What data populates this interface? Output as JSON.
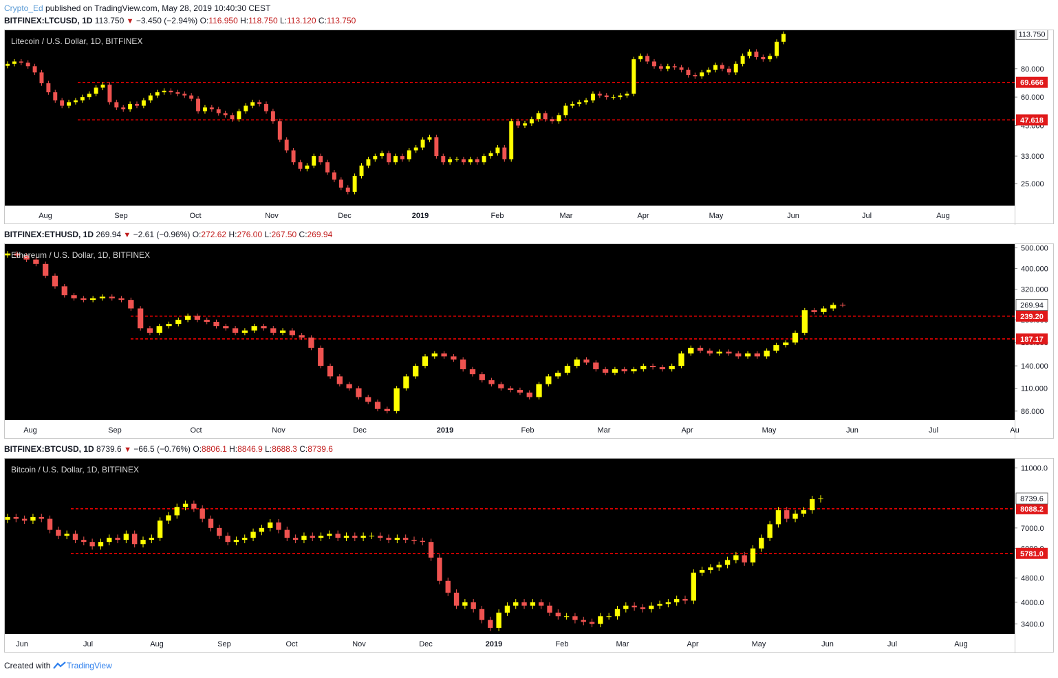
{
  "header": {
    "author": "Crypto_Ed",
    "published": "published on TradingView.com, May 28, 2019 10:40:30 CEST"
  },
  "footer": {
    "created_with": "Created with",
    "brand": "TradingView"
  },
  "panels": [
    {
      "legend": {
        "symbol": "BITFINEX:LTCUSD, 1D",
        "last": "113.750",
        "change": "−3.450 (−2.94%)",
        "o_label": "O:",
        "o": "116.950",
        "h_label": "H:",
        "h": "118.750",
        "l_label": "L:",
        "l": "113.120",
        "c_label": "C:",
        "c": "113.750"
      },
      "title": "Litecoin / U.S. Dollar, 1D, BITFINEX",
      "price_label": "113.750",
      "level_labels": [
        "69.666",
        "47.618"
      ]
    },
    {
      "legend": {
        "symbol": "BITFINEX:ETHUSD, 1D",
        "last": "269.94",
        "change": "−2.61 (−0.96%)",
        "o_label": "O:",
        "o": "272.62",
        "h_label": "H:",
        "h": "276.00",
        "l_label": "L:",
        "l": "267.50",
        "c_label": "C:",
        "c": "269.94"
      },
      "title": "Ethereum / U.S. Dollar, 1D, BITFINEX",
      "price_label": "269.94",
      "level_labels": [
        "239.20",
        "187.17"
      ]
    },
    {
      "legend": {
        "symbol": "BITFINEX:BTCUSD, 1D",
        "last": "8739.6",
        "change": "−66.5 (−0.76%)",
        "o_label": "O:",
        "o": "8806.1",
        "h_label": "H:",
        "h": "8846.9",
        "l_label": "L:",
        "l": "8688.3",
        "c_label": "C:",
        "c": "8739.6"
      },
      "title": "Bitcoin / U.S. Dollar, 1D, BITFINEX",
      "price_label": "8739.6",
      "level_labels": [
        "8088.2",
        "5781.0"
      ]
    }
  ],
  "colors": {
    "background": "#000000",
    "up": "#ffff00",
    "down": "#ef5350",
    "level": "#ff0000",
    "axis_text": "#131722"
  },
  "chart_data": [
    {
      "type": "candlestick",
      "symbol": "LTCUSD",
      "scale": "log",
      "ylim": [
        20,
        118
      ],
      "y_ticks": [
        "25.000",
        "33.000",
        "45.000",
        "60.000",
        "80.000"
      ],
      "x_ticks": [
        "Aug",
        "Sep",
        "Oct",
        "Nov",
        "Dec",
        "2019",
        "Feb",
        "Mar",
        "Apr",
        "May",
        "Jun",
        "Jul",
        "Aug"
      ],
      "levels": [
        69.666,
        47.618
      ],
      "last": 113.75,
      "closes": [
        84,
        86,
        85,
        82,
        77,
        69,
        63,
        58,
        55,
        57,
        58,
        60,
        62,
        66,
        68,
        57,
        54,
        53,
        56,
        55,
        58,
        61,
        63,
        64,
        63,
        62,
        61,
        59,
        52,
        54,
        53,
        51,
        50,
        48,
        52,
        55,
        57,
        56,
        52,
        47,
        39,
        35,
        31,
        29,
        30,
        33,
        31,
        28,
        26,
        24,
        23,
        27,
        30,
        32,
        33,
        34,
        31,
        33,
        32,
        35,
        36,
        39,
        40,
        33,
        31,
        32,
        32,
        31,
        32,
        31,
        33,
        34,
        36,
        32,
        47,
        45,
        46,
        48,
        51,
        48,
        47,
        50,
        55,
        56,
        57,
        58,
        62,
        61,
        60,
        60,
        61,
        62,
        88,
        91,
        86,
        82,
        80,
        82,
        81,
        79,
        75,
        74,
        77,
        79,
        83,
        80,
        77,
        84,
        91,
        95,
        90,
        88,
        91,
        105,
        113.75
      ]
    },
    {
      "type": "candlestick",
      "symbol": "ETHUSD",
      "scale": "log",
      "ylim": [
        78,
        520
      ],
      "y_ticks": [
        "86.000",
        "110.000",
        "140.000",
        "180.000",
        "230.000",
        "320.000",
        "400.000",
        "500.000"
      ],
      "x_ticks": [
        "Aug",
        "Sep",
        "Oct",
        "Nov",
        "Dec",
        "2019",
        "Feb",
        "Mar",
        "Apr",
        "May",
        "Jun",
        "Jul",
        "Au"
      ],
      "levels": [
        239.2,
        187.17
      ],
      "last": 269.94,
      "closes": [
        470,
        460,
        440,
        420,
        370,
        330,
        300,
        290,
        285,
        290,
        295,
        290,
        285,
        260,
        210,
        200,
        215,
        220,
        230,
        240,
        230,
        225,
        215,
        210,
        200,
        205,
        215,
        210,
        200,
        205,
        195,
        190,
        170,
        140,
        125,
        115,
        110,
        100,
        95,
        88,
        86,
        110,
        125,
        140,
        155,
        160,
        155,
        150,
        135,
        128,
        120,
        115,
        110,
        108,
        105,
        100,
        115,
        125,
        130,
        140,
        150,
        145,
        135,
        130,
        135,
        132,
        135,
        140,
        138,
        135,
        140,
        160,
        170,
        165,
        160,
        163,
        160,
        155,
        160,
        155,
        165,
        175,
        180,
        200,
        255,
        250,
        260,
        270,
        269.94
      ]
    },
    {
      "type": "candlestick",
      "symbol": "BTCUSD",
      "scale": "log",
      "ylim": [
        3150,
        11800
      ],
      "y_ticks": [
        "3400.0",
        "4000.0",
        "4800.0",
        "6000.0",
        "7000.0",
        "11000.0"
      ],
      "x_ticks": [
        "Jun",
        "Jul",
        "Aug",
        "Sep",
        "Oct",
        "Nov",
        "Dec",
        "2019",
        "Feb",
        "Mar",
        "Apr",
        "May",
        "Jun",
        "Jul",
        "Aug"
      ],
      "levels": [
        8088.2,
        5781.0
      ],
      "last": 8739.6,
      "closes": [
        7600,
        7500,
        7400,
        7600,
        7500,
        6900,
        6600,
        6700,
        6400,
        6300,
        6100,
        6300,
        6500,
        6400,
        6700,
        6200,
        6400,
        6500,
        7400,
        7700,
        8200,
        8400,
        8100,
        7500,
        7000,
        6600,
        6300,
        6400,
        6500,
        6800,
        7000,
        7300,
        6900,
        6500,
        6400,
        6600,
        6500,
        6600,
        6700,
        6500,
        6600,
        6500,
        6600,
        6600,
        6500,
        6400,
        6500,
        6400,
        6350,
        6300,
        5600,
        4700,
        4300,
        3900,
        4000,
        3800,
        3500,
        3300,
        3700,
        3900,
        4000,
        3900,
        4000,
        3900,
        3700,
        3600,
        3600,
        3500,
        3450,
        3400,
        3600,
        3600,
        3800,
        3900,
        3850,
        3800,
        3900,
        3950,
        4000,
        4100,
        4050,
        5000,
        5100,
        5200,
        5300,
        5500,
        5700,
        5400,
        6000,
        6500,
        7200,
        8000,
        7500,
        7800,
        8000,
        8700,
        8739.6
      ]
    }
  ]
}
